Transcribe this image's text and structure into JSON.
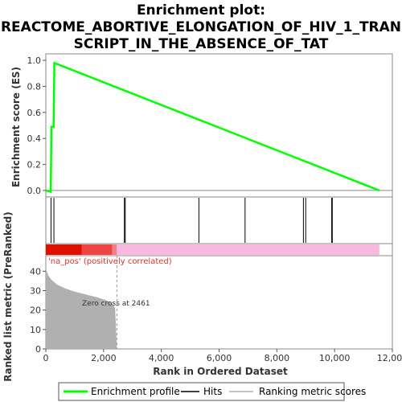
{
  "chart_data": {
    "type": "line",
    "title_lines": [
      "Enrichment plot:",
      "REACTOME_ABORTIVE_ELONGATION_OF_HIV_1_TRAN",
      "SCRIPT_IN_THE_ABSENCE_OF_TAT"
    ],
    "xlabel": "Rank in Ordered Dataset",
    "es_panel": {
      "ylabel": "Enrichment score (ES)",
      "ylim": [
        -0.05,
        1.05
      ],
      "yticks": [
        0.0,
        0.2,
        0.4,
        0.6,
        0.8,
        1.0
      ],
      "ytick_labels": [
        "0.0",
        "0.2",
        "0.4",
        "0.6",
        "0.8",
        "1.0"
      ],
      "series": [
        {
          "name": "Enrichment profile",
          "color": "#00ff00",
          "x": [
            0,
            170,
            195,
            270,
            295,
            11550
          ],
          "y": [
            0.0,
            -0.01,
            0.49,
            0.49,
            0.98,
            0.0
          ]
        }
      ]
    },
    "hits": [
      180,
      280,
      2720,
      2750,
      5300,
      6900,
      8920,
      9000,
      9900,
      9920
    ],
    "color_bar": {
      "segments": [
        {
          "from": 0,
          "to": 1250,
          "color": "#dd1100"
        },
        {
          "from": 1250,
          "to": 2300,
          "color": "#ee4444"
        },
        {
          "from": 2300,
          "to": 2461,
          "color": "#f58080"
        },
        {
          "from": 2461,
          "to": 11550,
          "color": "#f9b8dd"
        }
      ]
    },
    "rank_panel": {
      "ylabel": "Ranked list metric (PreRanked)",
      "ylim": [
        0,
        48
      ],
      "yticks": [
        0,
        10,
        20,
        30,
        40
      ],
      "ytick_labels": [
        "0",
        "10",
        "20",
        "30",
        "40"
      ],
      "positive_label": "'na_pos' (positively correlated)",
      "zero_cross_label": "Zero cross at 2461",
      "zero_cross": 2461,
      "profile_x": [
        0,
        30,
        100,
        200,
        400,
        700,
        1000,
        1400,
        1800,
        2100,
        2300,
        2400,
        2461
      ],
      "profile_y": [
        43,
        40,
        37.5,
        35.5,
        33,
        31,
        29.5,
        28,
        26.5,
        25,
        23.5,
        21,
        0
      ],
      "color": "#b0b0b0"
    },
    "xlim": [
      0,
      12000
    ],
    "xticks": [
      0,
      2000,
      4000,
      6000,
      8000,
      10000,
      12000
    ],
    "xtick_labels": [
      "0",
      "2,000",
      "4,000",
      "6,000",
      "8,000",
      "10,000",
      "12,000"
    ],
    "legend": {
      "position": "bottom",
      "entries": [
        {
          "label": "Enrichment profile",
          "color": "#00ff00"
        },
        {
          "label": "Hits",
          "color": "#000000"
        },
        {
          "label": "Ranking metric scores",
          "color": "#b0b0b0"
        }
      ]
    }
  }
}
